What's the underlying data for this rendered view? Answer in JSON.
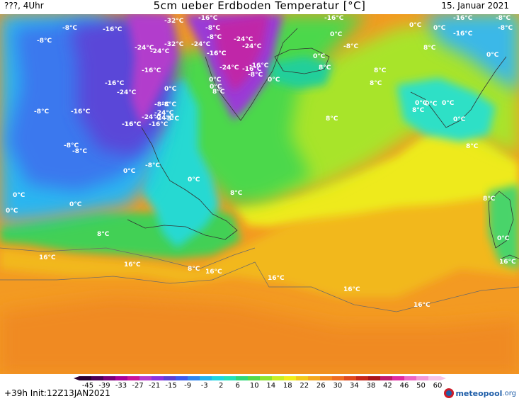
{
  "header": {
    "left_text": "???, 4Uhr",
    "title": "5cm ueber Erdboden Temperatur [°C]",
    "date": "15. Januar 2021"
  },
  "footer": {
    "init_text": "+39h Init:12Z13JAN2021",
    "logo_brand": "meteopool",
    "logo_tld": ".org"
  },
  "legend": {
    "ticks": [
      "-45",
      "-39",
      "-33",
      "-27",
      "-21",
      "-15",
      "-9",
      "-3",
      "2",
      "6",
      "10",
      "14",
      "18",
      "22",
      "26",
      "30",
      "34",
      "38",
      "42",
      "46",
      "50",
      "60"
    ],
    "colors": [
      "#2a0033",
      "#4b0058",
      "#7a007a",
      "#a8009a",
      "#c9139c",
      "#b83acc",
      "#8c33e0",
      "#5d3fd6",
      "#3d5bf0",
      "#2f86f2",
      "#21b3ef",
      "#1fd6e0",
      "#24e2b8",
      "#2fd878",
      "#55d84a",
      "#8ce42e",
      "#c8ee24",
      "#f0ee1a",
      "#f2c81a",
      "#f4a81e",
      "#f38a22",
      "#ef6d22",
      "#e14a1d",
      "#c7281a",
      "#a9141a",
      "#c0186a",
      "#e02aa0",
      "#ee66c6",
      "#f398d8",
      "#f7c4e8"
    ]
  },
  "map": {
    "labels": [
      {
        "t": "-8°C"
      },
      {
        "t": "-16°C"
      },
      {
        "t": "-32°C"
      },
      {
        "t": "-16°C"
      },
      {
        "t": "-24°C"
      },
      {
        "t": "-8°C"
      },
      {
        "t": "-16°C"
      },
      {
        "t": "0°C"
      },
      {
        "t": "-16°C"
      },
      {
        "t": "-8°C"
      },
      {
        "t": "-8°C"
      },
      {
        "t": "-32°C"
      },
      {
        "t": "-24°C"
      },
      {
        "t": "-8°C"
      },
      {
        "t": "-24°C"
      },
      {
        "t": "-24°C"
      },
      {
        "t": "-16°C"
      },
      {
        "t": "0°C"
      },
      {
        "t": "-16°C"
      },
      {
        "t": "-8°C"
      },
      {
        "t": "-24°C"
      },
      {
        "t": "-16°C"
      },
      {
        "t": "-24°C"
      },
      {
        "t": "-8°C"
      },
      {
        "t": "8°C"
      },
      {
        "t": "0°C"
      },
      {
        "t": "-16°C"
      },
      {
        "t": "-16°C"
      },
      {
        "t": "0°C"
      },
      {
        "t": "-24°C"
      },
      {
        "t": "-16°C"
      },
      {
        "t": "0°C"
      },
      {
        "t": "-24°C"
      },
      {
        "t": "-16°C"
      },
      {
        "t": "-8°C"
      },
      {
        "t": "8°C"
      },
      {
        "t": "-16°C"
      },
      {
        "t": "-24°C"
      },
      {
        "t": "0°C"
      },
      {
        "t": "0°C"
      },
      {
        "t": "-16°C"
      },
      {
        "t": "-8°C"
      },
      {
        "t": "-8°C"
      },
      {
        "t": "-8°C"
      },
      {
        "t": "-16°C"
      },
      {
        "t": "-24°C"
      },
      {
        "t": "-16°C"
      },
      {
        "t": "0°C"
      },
      {
        "t": "8°C"
      },
      {
        "t": "0°C"
      },
      {
        "t": "8°C"
      },
      {
        "t": "0°C"
      },
      {
        "t": "0°C"
      },
      {
        "t": "8°C"
      },
      {
        "t": "-8°C"
      },
      {
        "t": "-8°C"
      },
      {
        "t": "8°C"
      },
      {
        "t": "-8°C"
      },
      {
        "t": "0°C"
      },
      {
        "t": "0°C"
      },
      {
        "t": "-8°C"
      },
      {
        "t": "8°C"
      },
      {
        "t": "0°C"
      },
      {
        "t": "0°C"
      },
      {
        "t": "0°C"
      },
      {
        "t": "8°C"
      },
      {
        "t": "0°C"
      },
      {
        "t": "8°C"
      },
      {
        "t": "0°C"
      },
      {
        "t": "8°C"
      },
      {
        "t": "8°C"
      },
      {
        "t": "0°C"
      },
      {
        "t": "16°C"
      },
      {
        "t": "16°C"
      },
      {
        "t": "8°C"
      },
      {
        "t": "16°C"
      },
      {
        "t": "16°C"
      },
      {
        "t": "16°C"
      },
      {
        "t": "16°C"
      },
      {
        "t": "16°C"
      }
    ]
  }
}
